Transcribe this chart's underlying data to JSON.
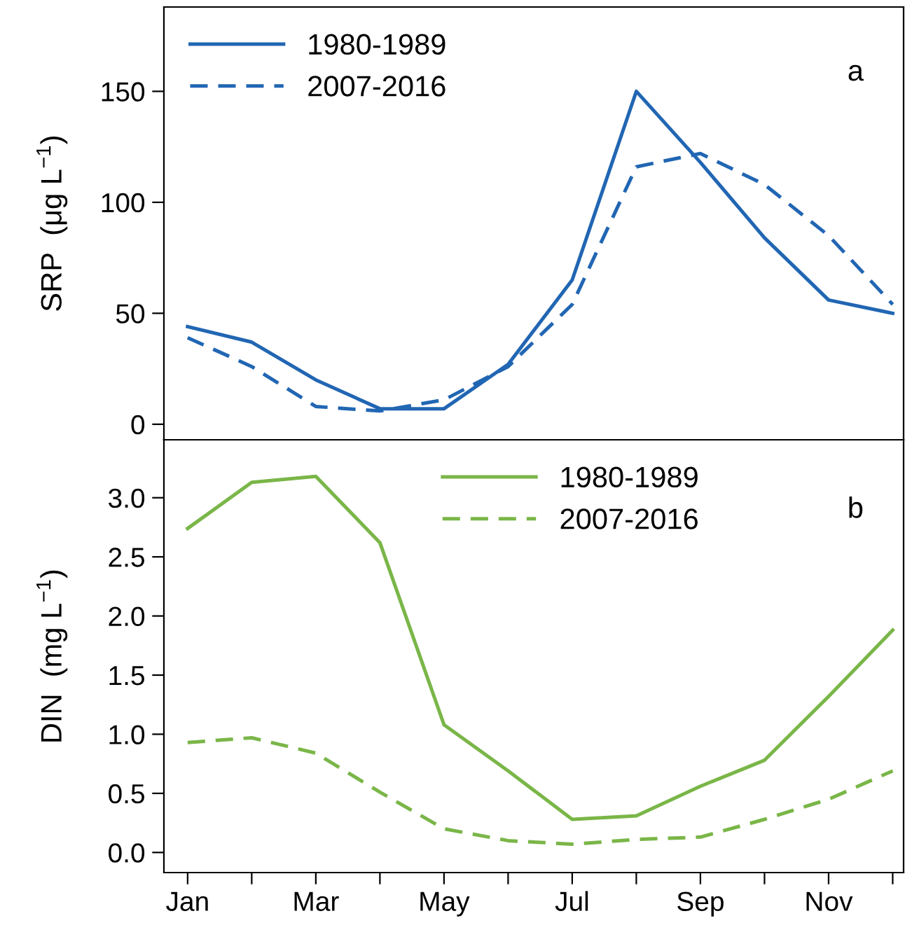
{
  "chart_data": [
    {
      "type": "line",
      "ylabel": "SRP  (μg L$^{−1}$)",
      "ylim": [
        -7,
        188
      ],
      "yticks": [
        0,
        50,
        100,
        150
      ],
      "legend": "top left",
      "grid": false,
      "annotations": [
        "a"
      ],
      "series": [
        {
          "name": "1980-1989",
          "color": "#2166b3",
          "line_style": "solid",
          "values": [
            44,
            37,
            20,
            7,
            7,
            27,
            65,
            150,
            118,
            84,
            56,
            50
          ]
        },
        {
          "name": "2007-2016",
          "color": "#2166b3",
          "line_style": "dashed",
          "values": [
            39,
            26,
            8,
            6,
            11,
            26,
            54,
            116,
            122,
            108,
            85,
            54
          ]
        }
      ]
    },
    {
      "type": "line",
      "ylabel": "DIN  (mg L$^{−1}$)",
      "categories": [
        "Jan",
        null,
        "Mar",
        null,
        "May",
        null,
        "Jul",
        null,
        "Sep",
        null,
        "Nov",
        null
      ],
      "ylim": [
        -0.17,
        3.49
      ],
      "yticks": [
        {
          "value": 0,
          "label": "0.0"
        },
        0.5,
        {
          "value": 1,
          "label": "1.0"
        },
        1.5,
        {
          "value": 2,
          "label": "2.0"
        },
        2.5,
        {
          "value": 3,
          "label": "3.0"
        }
      ],
      "legend": "top",
      "grid": false,
      "annotations": [
        "b"
      ],
      "series": [
        {
          "name": "1980-1989",
          "color": "#7ab648",
          "line_style": "solid",
          "values": [
            2.74,
            3.13,
            3.18,
            2.62,
            1.08,
            0.69,
            0.28,
            0.31,
            0.56,
            0.78,
            1.32,
            1.88
          ]
        },
        {
          "name": "2007-2016",
          "color": "#7ab648",
          "line_style": "dashed",
          "values": [
            0.93,
            0.97,
            0.84,
            0.51,
            0.2,
            0.1,
            0.07,
            0.11,
            0.13,
            0.28,
            0.45,
            0.69
          ]
        }
      ]
    }
  ]
}
